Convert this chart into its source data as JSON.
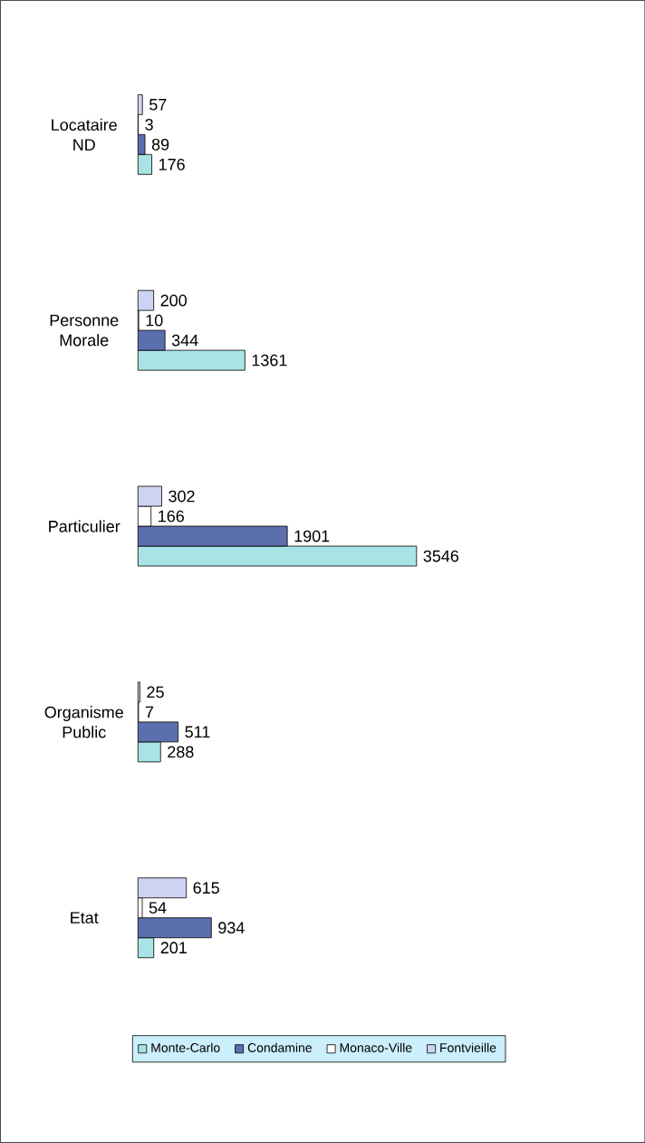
{
  "chart_data": {
    "type": "bar",
    "orientation": "horizontal",
    "categories": [
      "Locataire ND",
      "Personne Morale",
      "Particulier",
      "Organisme Public",
      "Etat"
    ],
    "series": [
      {
        "name": "Monte-Carlo",
        "color": "#a8e4e6",
        "values": [
          176,
          1361,
          3546,
          288,
          201
        ]
      },
      {
        "name": "Condamine",
        "color": "#5b6fae",
        "values": [
          89,
          344,
          1901,
          511,
          934
        ]
      },
      {
        "name": "Monaco-Ville",
        "color": "#ffffff",
        "values": [
          3,
          10,
          166,
          7,
          54
        ]
      },
      {
        "name": "Fontvieille",
        "color": "#cdd3f2",
        "values": [
          57,
          200,
          302,
          25,
          615
        ]
      }
    ],
    "data_labels": true,
    "legend": "bottom"
  }
}
